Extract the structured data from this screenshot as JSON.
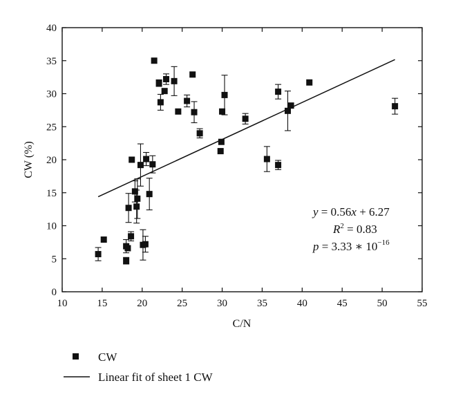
{
  "chart_data": {
    "type": "scatter",
    "xlabel": "C/N",
    "ylabel": "CW (%)",
    "xlim": [
      10,
      55
    ],
    "ylim": [
      0,
      40
    ],
    "xticks": [
      10,
      15,
      20,
      25,
      30,
      35,
      40,
      45,
      50,
      55
    ],
    "yticks": [
      0,
      5,
      10,
      15,
      20,
      25,
      30,
      35,
      40
    ],
    "grid": false,
    "legend_position": "bottom-left, below plot",
    "series": [
      {
        "name": "CW",
        "marker": "square",
        "color": "#111111",
        "points": [
          {
            "x": 14.5,
            "y": 5.7,
            "err": 1.0
          },
          {
            "x": 15.2,
            "y": 7.9
          },
          {
            "x": 18.0,
            "y": 4.7,
            "err": 0.5
          },
          {
            "x": 18.0,
            "y": 6.9,
            "err": 1.0
          },
          {
            "x": 18.2,
            "y": 6.6
          },
          {
            "x": 18.3,
            "y": 12.7,
            "err": 2.2
          },
          {
            "x": 18.6,
            "y": 8.4,
            "err": 0.7
          },
          {
            "x": 18.7,
            "y": 20.0
          },
          {
            "x": 19.1,
            "y": 15.2,
            "err": 1.6
          },
          {
            "x": 19.3,
            "y": 12.9,
            "err": 2.5
          },
          {
            "x": 19.4,
            "y": 14.1,
            "err": 3.0
          },
          {
            "x": 19.8,
            "y": 19.2,
            "err": 3.2
          },
          {
            "x": 20.1,
            "y": 7.1,
            "err": 2.3
          },
          {
            "x": 20.4,
            "y": 7.2,
            "err": 1.2
          },
          {
            "x": 20.5,
            "y": 20.1,
            "err": 1.0
          },
          {
            "x": 20.9,
            "y": 14.8,
            "err": 2.4
          },
          {
            "x": 21.3,
            "y": 19.3,
            "err": 1.3
          },
          {
            "x": 21.5,
            "y": 35.0
          },
          {
            "x": 22.1,
            "y": 31.6,
            "err": 0.5
          },
          {
            "x": 22.3,
            "y": 28.7,
            "err": 1.2
          },
          {
            "x": 22.8,
            "y": 30.4
          },
          {
            "x": 23.0,
            "y": 32.2,
            "err": 0.8
          },
          {
            "x": 24.0,
            "y": 31.9,
            "err": 2.2
          },
          {
            "x": 24.5,
            "y": 27.3
          },
          {
            "x": 25.6,
            "y": 28.9,
            "err": 0.9
          },
          {
            "x": 26.3,
            "y": 32.9
          },
          {
            "x": 26.5,
            "y": 27.2,
            "err": 1.6
          },
          {
            "x": 27.2,
            "y": 24.0,
            "err": 0.7
          },
          {
            "x": 29.8,
            "y": 21.3
          },
          {
            "x": 29.9,
            "y": 22.7
          },
          {
            "x": 30.0,
            "y": 27.3
          },
          {
            "x": 30.3,
            "y": 29.8,
            "err": 3.0
          },
          {
            "x": 32.9,
            "y": 26.2,
            "err": 0.8
          },
          {
            "x": 35.6,
            "y": 20.1,
            "err": 1.9
          },
          {
            "x": 37.0,
            "y": 30.3,
            "err": 1.1
          },
          {
            "x": 37.0,
            "y": 19.2,
            "err": 0.7
          },
          {
            "x": 38.2,
            "y": 27.4,
            "err": 3.0
          },
          {
            "x": 38.6,
            "y": 28.2
          },
          {
            "x": 40.9,
            "y": 31.7
          },
          {
            "x": 51.6,
            "y": 28.1,
            "err": 1.2
          }
        ]
      },
      {
        "name": "Linear fit of sheet 1 CW",
        "type": "line",
        "color": "#111111",
        "slope": 0.56,
        "intercept": 6.27,
        "x_range": [
          14.5,
          51.6
        ]
      }
    ],
    "annotation": {
      "line1": {
        "y": "y",
        "eq": " = 0.56",
        "x": "x",
        "rest": " + 6.27"
      },
      "line2": {
        "r": "R",
        "sup": "2",
        "rest": " = 0.83"
      },
      "line3": {
        "p": "p",
        "rest": " = 3.33 ∗ 10",
        "sup": "−16"
      }
    },
    "legend": [
      {
        "label": "CW",
        "marker": "square"
      },
      {
        "label": "Linear fit of sheet 1 CW",
        "marker": "line"
      }
    ]
  }
}
